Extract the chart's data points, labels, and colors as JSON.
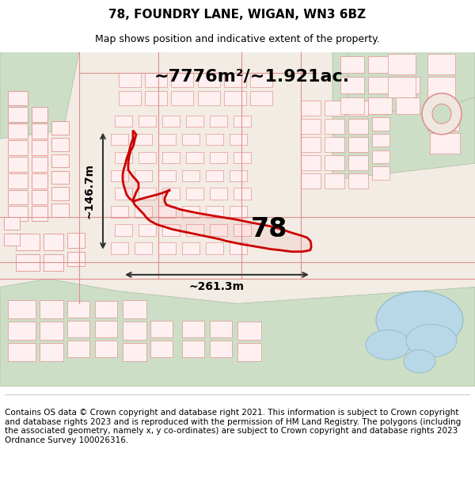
{
  "title": "78, FOUNDRY LANE, WIGAN, WN3 6BZ",
  "subtitle": "Map shows position and indicative extent of the property.",
  "footer": "Contains OS data © Crown copyright and database right 2021. This information is subject to Crown copyright and database rights 2023 and is reproduced with the permission of HM Land Registry. The polygons (including the associated geometry, namely x, y co-ordinates) are subject to Crown copyright and database rights 2023 Ordnance Survey 100026316.",
  "area_label": "~7776m²/~1.921ac.",
  "width_label": "~261.3m",
  "height_label": "~146.7m",
  "property_number": "78",
  "title_fontsize": 11,
  "subtitle_fontsize": 9,
  "footer_fontsize": 7.5,
  "title_color": "#000000",
  "footer_color": "#000000",
  "annotation_color": "#000000",
  "red_line_color": "#cc0000",
  "arrow_color": "#333333",
  "map_bg_color": "#f2ece4",
  "green_color": "#cddec6",
  "green_edge": "#aabba0",
  "water_color": "#b8d8e8",
  "water_edge": "#90b8c8",
  "building_fill": "#fef0f0",
  "building_edge": "#e08080",
  "road_color": "#e09090"
}
